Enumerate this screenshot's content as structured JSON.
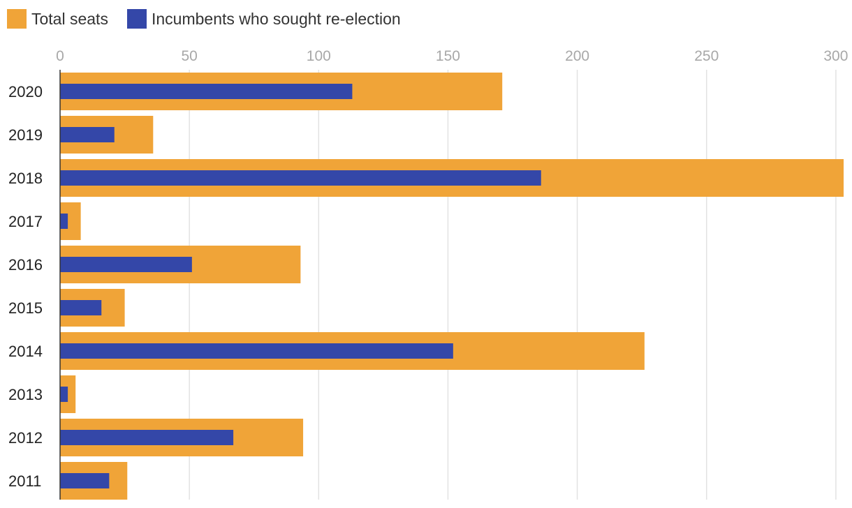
{
  "chart_data": {
    "type": "bar",
    "orientation": "horizontal",
    "legend": [
      {
        "label": "Total seats",
        "color": "#f0a438"
      },
      {
        "label": "Incumbents who sought re-election",
        "color": "#3447a8"
      }
    ],
    "legend_position": "top-left",
    "xlim": [
      0,
      303
    ],
    "x_ticks": [
      0,
      50,
      100,
      150,
      200,
      250,
      300
    ],
    "x_tick_labels": [
      "0",
      "50",
      "100",
      "150",
      "200",
      "250",
      "300"
    ],
    "grid": true,
    "categories": [
      "2020",
      "2019",
      "2018",
      "2017",
      "2016",
      "2015",
      "2014",
      "2013",
      "2012",
      "2011"
    ],
    "series": [
      {
        "name": "Total seats",
        "color": "#f0a438",
        "values": [
          171,
          36,
          303,
          8,
          93,
          25,
          226,
          6,
          94,
          26
        ]
      },
      {
        "name": "Incumbents who sought re-election",
        "color": "#3447a8",
        "values": [
          113,
          21,
          186,
          3,
          51,
          16,
          152,
          3,
          67,
          19
        ]
      }
    ]
  }
}
